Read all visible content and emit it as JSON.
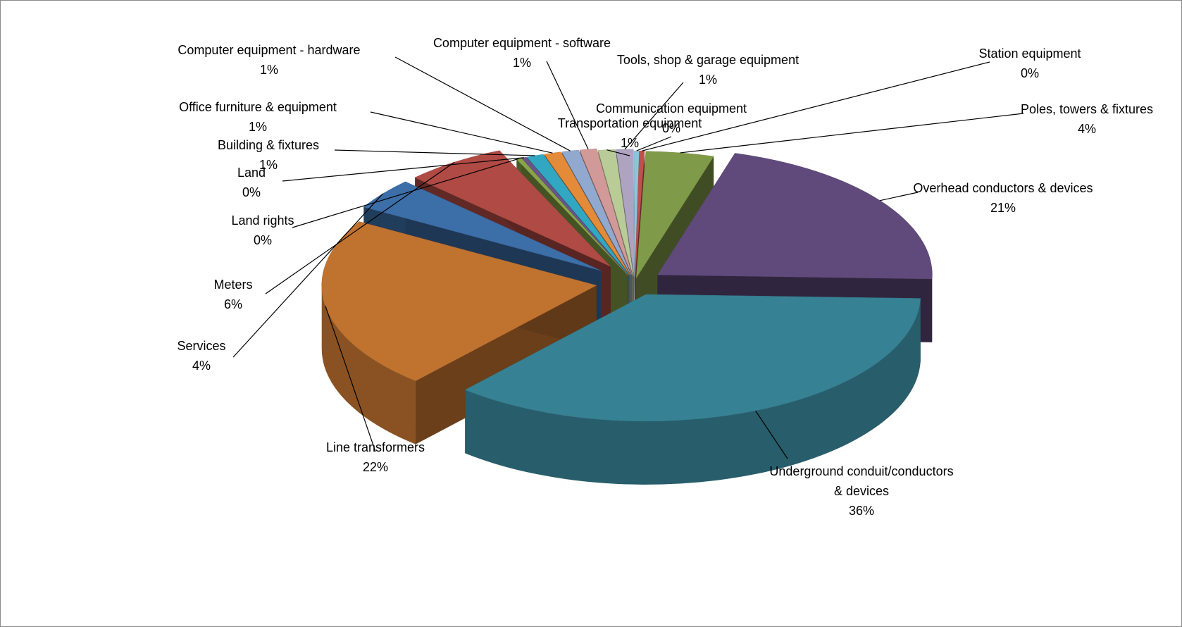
{
  "chart_data": {
    "type": "pie",
    "style": "3d-exploded",
    "legend": "none",
    "slices": [
      {
        "label": "Poles, towers & fixtures",
        "value": 4,
        "pct_text": "4%",
        "color": "#7f9a48"
      },
      {
        "label": "Overhead conductors & devices",
        "value": 21,
        "pct_text": "21%",
        "color": "#604a7b"
      },
      {
        "label": "Underground conduit/conductors",
        "label2": "& devices",
        "value": 36,
        "pct_text": "36%",
        "color": "#378194"
      },
      {
        "label": "Line transformers",
        "value": 22,
        "pct_text": "22%",
        "color": "#c0722f"
      },
      {
        "label": "Services",
        "value": 4,
        "pct_text": "4%",
        "color": "#3c6ea8"
      },
      {
        "label": "Meters",
        "value": 6,
        "pct_text": "6%",
        "color": "#b04a44"
      },
      {
        "label": "Land rights",
        "value": 0.3,
        "pct_text": "0%",
        "color": "#8aa548"
      },
      {
        "label": "Land",
        "value": 0.3,
        "pct_text": "0%",
        "color": "#6b5488"
      },
      {
        "label": "Building & fixtures",
        "value": 1,
        "pct_text": "1%",
        "color": "#31a7c2"
      },
      {
        "label": "Office furniture & equipment",
        "value": 1,
        "pct_text": "1%",
        "color": "#e48b3a"
      },
      {
        "label": "Computer equipment - hardware",
        "value": 1,
        "pct_text": "1%",
        "color": "#92a9cf"
      },
      {
        "label": "Computer equipment - software",
        "value": 1,
        "pct_text": "1%",
        "color": "#d19a98"
      },
      {
        "label": "Transportation equipment",
        "value": 1,
        "pct_text": "1%",
        "color": "#b9cc98"
      },
      {
        "label": "Tools, shop & garage equipment",
        "value": 1,
        "pct_text": "1%",
        "color": "#aea4c2"
      },
      {
        "label": "Communication equipment",
        "value": 0.3,
        "pct_text": "0%",
        "color": "#8dc5d8"
      },
      {
        "label": "Station equipment",
        "value": 0.3,
        "pct_text": "0%",
        "color": "#c0504d"
      }
    ]
  }
}
